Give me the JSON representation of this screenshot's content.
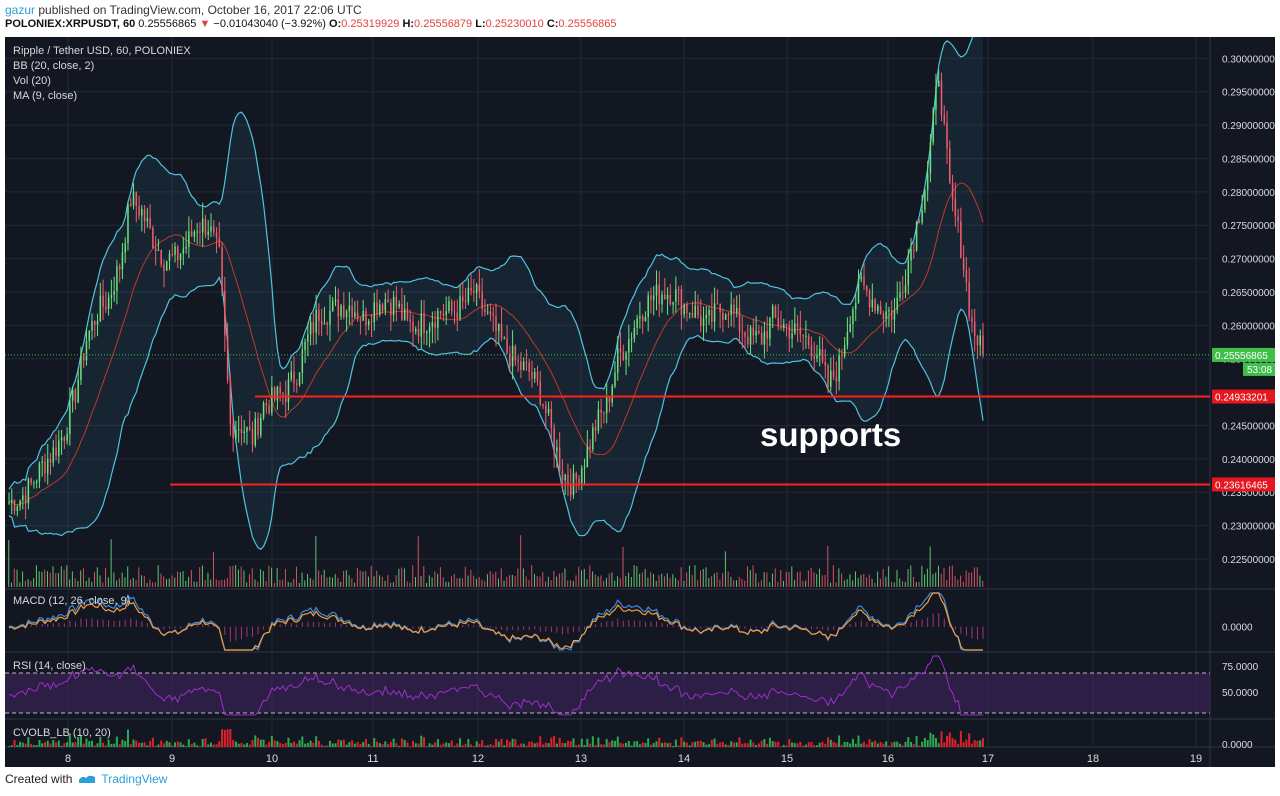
{
  "header": {
    "user": "gazur",
    "published_text": "published on TradingView.com, October 16, 2017 22:06 UTC",
    "symbol": "POLONIEX:XRPUSDT, 60",
    "last": "0.25556865",
    "change_arrow": "▼",
    "change": "−0.01043040 (−3.92%)",
    "o_label": "O:",
    "o": "0.25319929",
    "h_label": "H:",
    "h": "0.25556879",
    "l_label": "L:",
    "l": "0.25230010",
    "c_label": "C:",
    "c": "0.25556865"
  },
  "legend": {
    "title": "Ripple / Tether USD, 60, POLONIEX",
    "bb": "BB (20, close, 2)",
    "vol": "Vol (20)",
    "ma": "MA (9, close)",
    "macd": "MACD (12, 26, close, 9)",
    "rsi": "RSI (14, close)",
    "cvolb": "CVOLB_LB (10, 20)"
  },
  "annotation": "supports",
  "footer": {
    "created_with": "Created with",
    "brand": "TradingView"
  },
  "colors": {
    "background": "#131722",
    "up": "#6fe07a",
    "down": "#f05d6c",
    "bb_band": "#4fc3e0",
    "bb_mid": "#c0392b",
    "support_line": "#ff2020",
    "last_price_badge": "#3fbf4a",
    "support_badge": "#e5161f",
    "macd_line": "#3c8bd9",
    "signal_line": "#f39c3c",
    "rsi_line": "#9b30c8"
  },
  "chart_data": {
    "type": "candlestick",
    "symbol": "XRPUSDT",
    "price_axis_ticks": [
      "0.30000000",
      "0.29500000",
      "0.29000000",
      "0.28500000",
      "0.28000000",
      "0.27500000",
      "0.27000000",
      "0.26500000",
      "0.26000000",
      "0.25500000",
      "0.24500000",
      "0.24000000",
      "0.23500000",
      "0.23000000",
      "0.22500000"
    ],
    "price_range": [
      0.2205,
      0.302
    ],
    "time_axis_labels": [
      "8",
      "9",
      "10",
      "11",
      "12",
      "13",
      "14",
      "15",
      "16",
      "17",
      "18",
      "19"
    ],
    "last_price_label": "0.25556865",
    "countdown_label": "53:08",
    "support_levels": [
      {
        "price": 0.24933201,
        "label": "0.24933201"
      },
      {
        "price": 0.23616465,
        "label": "0.23616465"
      }
    ],
    "macd_axis_label": "0.0000",
    "rsi_axis_labels": [
      "75.0000",
      "50.0000"
    ],
    "rsi_bands": [
      70,
      30
    ],
    "cvolb_axis_label": "0.0000",
    "price_path": [
      0.2335,
      0.234,
      0.236,
      0.239,
      0.241,
      0.244,
      0.25,
      0.258,
      0.262,
      0.264,
      0.269,
      0.279,
      0.277,
      0.273,
      0.27,
      0.27,
      0.272,
      0.275,
      0.275,
      0.27,
      0.245,
      0.245,
      0.243,
      0.248,
      0.249,
      0.25,
      0.253,
      0.258,
      0.262,
      0.262,
      0.263,
      0.263,
      0.261,
      0.263,
      0.264,
      0.263,
      0.26,
      0.26,
      0.261,
      0.262,
      0.262,
      0.263,
      0.265,
      0.262,
      0.259,
      0.256,
      0.254,
      0.253,
      0.25,
      0.244,
      0.238,
      0.236,
      0.24,
      0.245,
      0.248,
      0.255,
      0.258,
      0.262,
      0.264,
      0.265,
      0.265,
      0.263,
      0.262,
      0.26,
      0.262,
      0.263,
      0.26,
      0.258,
      0.258,
      0.261,
      0.26,
      0.259,
      0.258,
      0.256,
      0.251,
      0.254,
      0.262,
      0.266,
      0.264,
      0.262,
      0.262,
      0.268,
      0.275,
      0.283,
      0.298,
      0.28,
      0.272,
      0.26,
      0.2556
    ]
  }
}
